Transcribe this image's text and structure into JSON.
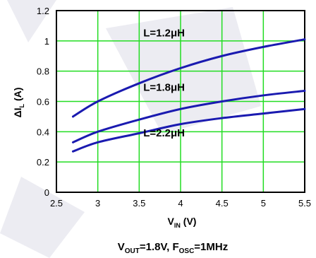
{
  "chart_data": {
    "type": "line",
    "xlabel": {
      "main": "V",
      "sub": "IN",
      "unit": " (V)"
    },
    "ylabel": {
      "main": "ΔI",
      "sub": "L",
      "unit": " (A)"
    },
    "xlim": [
      2.5,
      5.5
    ],
    "ylim": [
      0,
      1.2
    ],
    "x_ticks": [
      "2.5",
      "3",
      "3.5",
      "4",
      "4.5",
      "5",
      "5.5"
    ],
    "y_ticks": [
      "0",
      "0.2",
      "0.4",
      "0.6",
      "0.8",
      "1",
      "1.2"
    ],
    "grid": true,
    "grid_color": "#22dd22",
    "line_color": "#1a1ab0",
    "series": [
      {
        "name": "L=1.2μH",
        "x": [
          2.7,
          3.0,
          3.5,
          4.0,
          4.5,
          5.0,
          5.5
        ],
        "values": [
          0.5,
          0.6,
          0.72,
          0.82,
          0.9,
          0.96,
          1.01
        ]
      },
      {
        "name": "L=1.8μH",
        "x": [
          2.7,
          3.0,
          3.5,
          4.0,
          4.5,
          5.0,
          5.5
        ],
        "values": [
          0.33,
          0.4,
          0.48,
          0.55,
          0.6,
          0.64,
          0.67
        ]
      },
      {
        "name": "L=2.2μH",
        "x": [
          2.7,
          3.0,
          3.5,
          4.0,
          4.5,
          5.0,
          5.5
        ],
        "values": [
          0.27,
          0.33,
          0.39,
          0.45,
          0.49,
          0.52,
          0.55
        ]
      }
    ],
    "footer": [
      {
        "main": "V",
        "sub": "OUT",
        "rest": "=1.8V, "
      },
      {
        "main": "F",
        "sub": "OSC",
        "rest": "=1MHz"
      }
    ]
  }
}
